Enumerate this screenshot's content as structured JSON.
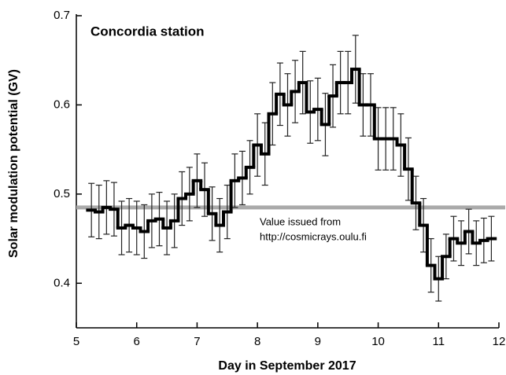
{
  "chart_data": {
    "type": "step",
    "title": "Concordia station",
    "x_label": "Day in September 2017",
    "y_label": "Solar modulation potential (GV)",
    "xlim": [
      5,
      12
    ],
    "ylim": [
      0.35,
      0.7
    ],
    "xticks": [
      5,
      6,
      7,
      8,
      9,
      10,
      11,
      12
    ],
    "yticks": [
      0.4,
      0.5,
      0.6,
      0.7
    ],
    "color": "#000000",
    "reference_line": {
      "value": 0.485,
      "color": "#aaaaaa"
    },
    "annotation": [
      "Value issued from",
      "http://cosmicrays.oulu.fi"
    ],
    "x": [
      5.25,
      5.375,
      5.5,
      5.625,
      5.75,
      5.875,
      6.0,
      6.125,
      6.25,
      6.375,
      6.5,
      6.625,
      6.75,
      6.875,
      7.0,
      7.125,
      7.25,
      7.375,
      7.5,
      7.625,
      7.75,
      7.875,
      8.0,
      8.125,
      8.25,
      8.375,
      8.5,
      8.625,
      8.75,
      8.875,
      9.0,
      9.125,
      9.25,
      9.375,
      9.5,
      9.625,
      9.75,
      9.875,
      10.0,
      10.125,
      10.25,
      10.375,
      10.5,
      10.625,
      10.75,
      10.875,
      11.0,
      11.125,
      11.25,
      11.375,
      11.5,
      11.625,
      11.75,
      11.875
    ],
    "values": [
      0.482,
      0.48,
      0.485,
      0.483,
      0.462,
      0.465,
      0.462,
      0.458,
      0.47,
      0.472,
      0.462,
      0.47,
      0.495,
      0.5,
      0.515,
      0.505,
      0.478,
      0.465,
      0.48,
      0.515,
      0.518,
      0.53,
      0.555,
      0.545,
      0.59,
      0.612,
      0.6,
      0.615,
      0.625,
      0.592,
      0.595,
      0.578,
      0.61,
      0.625,
      0.625,
      0.64,
      0.6,
      0.6,
      0.562,
      0.562,
      0.562,
      0.555,
      0.528,
      0.49,
      0.465,
      0.42,
      0.405,
      0.43,
      0.45,
      0.445,
      0.458,
      0.445,
      0.448,
      0.45
    ],
    "errors": [
      0.03,
      0.03,
      0.03,
      0.03,
      0.03,
      0.03,
      0.03,
      0.03,
      0.03,
      0.03,
      0.03,
      0.03,
      0.03,
      0.03,
      0.03,
      0.03,
      0.03,
      0.03,
      0.03,
      0.03,
      0.03,
      0.03,
      0.035,
      0.035,
      0.035,
      0.035,
      0.035,
      0.035,
      0.035,
      0.035,
      0.035,
      0.035,
      0.035,
      0.035,
      0.035,
      0.038,
      0.035,
      0.035,
      0.035,
      0.035,
      0.035,
      0.035,
      0.035,
      0.03,
      0.03,
      0.03,
      0.025,
      0.025,
      0.025,
      0.025,
      0.025,
      0.025,
      0.025,
      0.025
    ]
  }
}
